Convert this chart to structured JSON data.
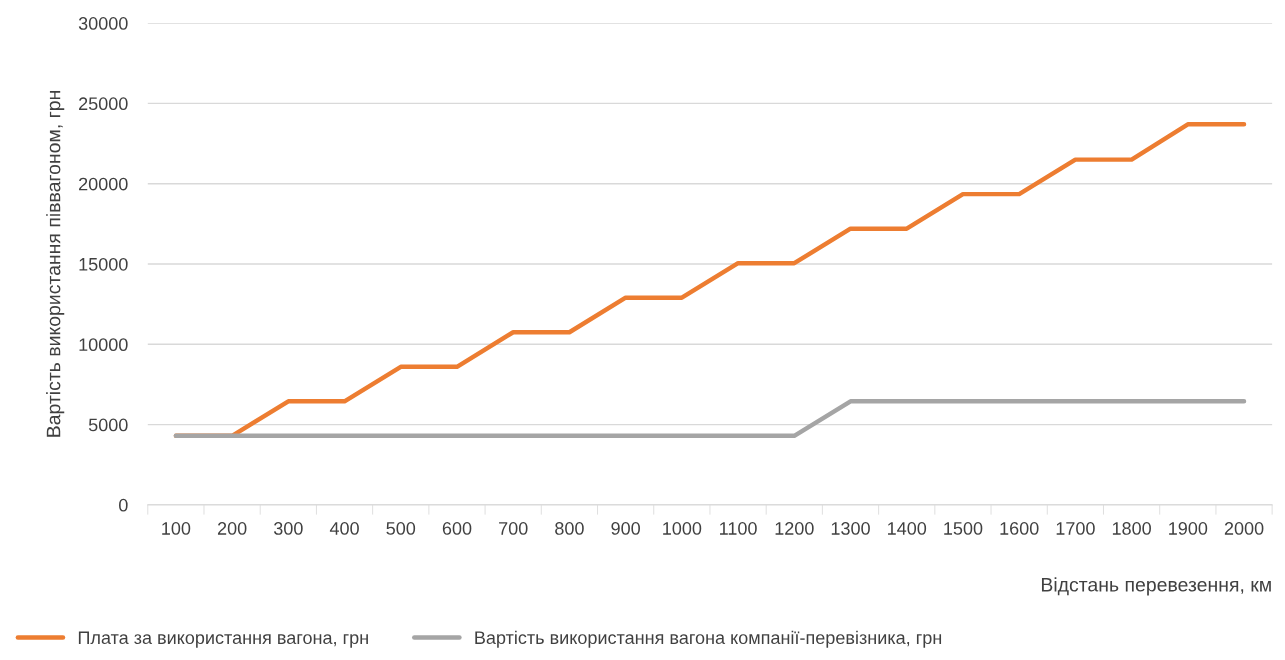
{
  "chart_data": {
    "type": "line",
    "xlabel": "Відстань перевезення, км",
    "ylabel": "Вартість використання піввагоном, грн",
    "categories": [
      "100",
      "200",
      "300",
      "400",
      "500",
      "600",
      "700",
      "800",
      "900",
      "1000",
      "1100",
      "1200",
      "1300",
      "1400",
      "1500",
      "1600",
      "1700",
      "1800",
      "1900",
      "2000"
    ],
    "series": [
      {
        "name": "Плата за використання вагона, грн",
        "color": "#ed7d31",
        "values": [
          4300,
          4300,
          6450,
          6450,
          8600,
          8600,
          10750,
          10750,
          12900,
          12900,
          15050,
          15050,
          17200,
          17200,
          19350,
          19350,
          21500,
          21500,
          23700,
          23700
        ]
      },
      {
        "name": "Вартість використання вагона компанії-перевізника, грн",
        "color": "#a5a5a5",
        "values": [
          4300,
          4300,
          4300,
          4300,
          4300,
          4300,
          4300,
          4300,
          4300,
          4300,
          4300,
          4300,
          6450,
          6450,
          6450,
          6450,
          6450,
          6450,
          6450,
          6450
        ]
      }
    ],
    "ylim": [
      0,
      30000
    ],
    "yticks": [
      0,
      5000,
      10000,
      15000,
      20000,
      25000,
      30000
    ],
    "grid": "y",
    "legend": "bottom left",
    "marker": "none",
    "line_style": "solid"
  }
}
